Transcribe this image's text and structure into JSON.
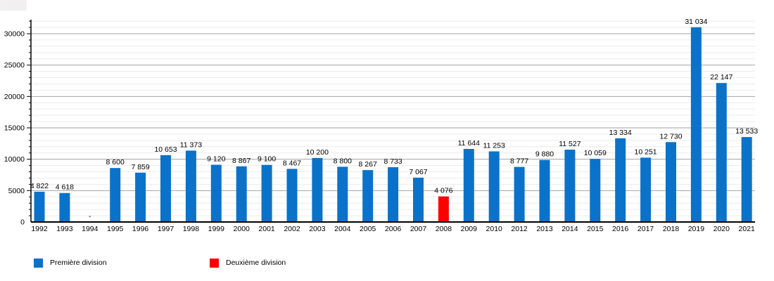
{
  "chart_data": {
    "type": "bar",
    "title": "",
    "xlabel": "",
    "ylabel": "",
    "categories": [
      "1992",
      "1993",
      "1994",
      "1995",
      "1996",
      "1997",
      "1998",
      "1999",
      "2000",
      "2001",
      "2002",
      "2003",
      "2004",
      "2005",
      "2006",
      "2007",
      "2008",
      "2009",
      "2010",
      "2012",
      "2013",
      "2014",
      "2015",
      "2016",
      "2017",
      "2018",
      "2019",
      "2020",
      "2021"
    ],
    "values": [
      4822,
      4618,
      null,
      8600,
      7859,
      10653,
      11373,
      9120,
      8867,
      9100,
      8467,
      10200,
      8800,
      8267,
      8733,
      7067,
      4076,
      11644,
      11253,
      8777,
      9880,
      11527,
      10059,
      13334,
      10251,
      12730,
      31034,
      22147,
      13533
    ],
    "value_labels": [
      "4 822",
      "4 618",
      "-",
      "8 600",
      "7 859",
      "10 653",
      "11 373",
      "9 120",
      "8 867",
      "9 100",
      "8 467",
      "10 200",
      "8 800",
      "8 267",
      "8 733",
      "7 067",
      "4 076",
      "11 644",
      "11 253",
      "8 777",
      "9 880",
      "11 527",
      "10 059",
      "13 334",
      "10 251",
      "12 730",
      "31 034",
      "22 147",
      "13 533"
    ],
    "point_series": [
      0,
      0,
      0,
      0,
      0,
      0,
      0,
      0,
      0,
      0,
      0,
      0,
      0,
      0,
      0,
      0,
      1,
      0,
      0,
      0,
      0,
      0,
      0,
      0,
      0,
      0,
      0,
      0,
      0
    ],
    "series": [
      {
        "name": "Première division",
        "color": "#0b72c9"
      },
      {
        "name": "Deuxième division",
        "color": "#ff0000"
      }
    ],
    "ylim": [
      0,
      32000
    ],
    "yticks_major": [
      0,
      5000,
      10000,
      15000,
      20000,
      25000,
      30000
    ],
    "grid": {
      "minor_step": 1000,
      "major_step": 5000,
      "minor_color": "#ebebeb",
      "major_color": "#a3a3a3"
    },
    "axis_color": "#000000",
    "missing_marker_color": "#8c8c8c",
    "legend_position": "bottom"
  }
}
